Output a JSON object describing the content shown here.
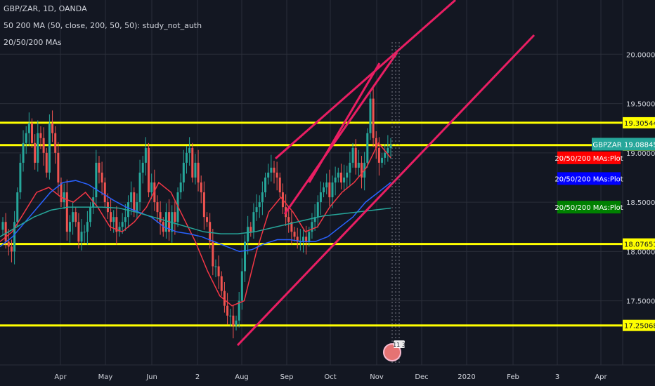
{
  "header": {
    "symbol_line": "GBP/ZAR, 1D, OANDA",
    "study_line": "50 200 MA (50, close, 200, 50, 50): study_not_auth",
    "ma_line": "20/50/200 MAs"
  },
  "chart_data": {
    "type": "candlestick",
    "symbol": "GBP/ZAR",
    "interval": "1D",
    "source": "OANDA",
    "ylim": [
      16.85,
      20.55
    ],
    "y_ticks": [
      17.5,
      18.0,
      18.5,
      19.0,
      19.5,
      20.0
    ],
    "y_tick_labels": [
      "17.50000",
      "18.00000",
      "18.50000",
      "19.00000",
      "19.50000",
      "20.00000"
    ],
    "x_tick_labels": [
      "Apr",
      "May",
      "Jun",
      "2",
      "Aug",
      "Sep",
      "Oct",
      "Nov",
      "Dec",
      "2020",
      "Feb",
      "3",
      "Apr"
    ],
    "horizontal_levels": [
      {
        "value": 19.30544,
        "label": "19.30544"
      },
      {
        "value": 19.07931,
        "label": "19.07931"
      },
      {
        "value": 18.07651,
        "label": "18.07651"
      },
      {
        "value": 17.25068,
        "label": "17.25068"
      }
    ],
    "last_price": {
      "label": "GBPZAR",
      "value": "19.08845",
      "y": 19.08845
    },
    "series_badges": [
      {
        "text": "20/50/200 MAs:Plot",
        "color": "#ff0000",
        "y": 18.95
      },
      {
        "text": "20/50/200 MAs:Plot",
        "color": "#0000ff",
        "y": 18.74
      },
      {
        "text": "20/50/200 MAs:Plot",
        "color": "#008000",
        "y": 18.45
      }
    ],
    "candles_daily": {
      "closes": [
        18.3,
        18.1,
        18.05,
        18.0,
        18.3,
        18.6,
        18.9,
        19.1,
        19.2,
        19.3,
        19.1,
        18.9,
        19.2,
        19.15,
        19.0,
        18.8,
        19.3,
        19.2,
        19.0,
        18.7,
        18.5,
        18.6,
        18.2,
        18.3,
        18.4,
        18.3,
        18.1,
        18.2,
        18.2,
        18.3,
        18.45,
        18.55,
        18.9,
        18.8,
        18.7,
        18.5,
        18.4,
        18.3,
        18.35,
        18.2,
        18.25,
        18.3,
        18.35,
        18.5,
        18.6,
        18.4,
        18.5,
        18.8,
        18.9,
        19.05,
        18.6,
        18.7,
        18.5,
        18.4,
        18.3,
        18.2,
        18.4,
        18.2,
        18.4,
        18.3,
        18.6,
        18.7,
        18.9,
        19.0,
        19.05,
        18.75,
        18.9,
        18.7,
        18.6,
        18.35,
        18.3,
        18.1,
        17.85,
        17.85,
        17.75,
        17.6,
        17.45,
        17.35,
        17.35,
        17.25,
        17.3,
        17.5,
        17.8,
        18.1,
        18.25,
        18.2,
        18.4,
        18.45,
        18.5,
        18.6,
        18.75,
        18.8,
        18.85,
        18.8,
        18.75,
        18.6,
        18.45,
        18.35,
        18.3,
        18.2,
        18.15,
        18.1,
        18.1,
        18.15,
        18.1,
        18.2,
        18.3,
        18.35,
        18.5,
        18.6,
        18.65,
        18.7,
        18.55,
        18.7,
        18.75,
        18.8,
        18.7,
        18.75,
        18.8,
        18.9,
        19.05,
        18.85,
        18.9,
        18.75,
        18.9,
        19.2,
        19.55,
        19.15,
        19.05,
        18.9,
        18.95,
        19.0,
        19.05,
        19.08
      ]
    },
    "moving_averages": [
      {
        "name": "MA 20",
        "color": "#f23645",
        "values": [
          18.1,
          18.2,
          18.4,
          18.6,
          18.65,
          18.55,
          18.5,
          18.6,
          18.45,
          18.25,
          18.2,
          18.3,
          18.45,
          18.7,
          18.6,
          18.35,
          18.1,
          17.8,
          17.55,
          17.45,
          17.5,
          18.0,
          18.4,
          18.55,
          18.4,
          18.2,
          18.25,
          18.45,
          18.6,
          18.7,
          18.85,
          19.1,
          18.95
        ]
      },
      {
        "name": "MA 50",
        "color": "#2962ff",
        "values": [
          18.05,
          18.15,
          18.3,
          18.45,
          18.6,
          18.7,
          18.72,
          18.68,
          18.6,
          18.52,
          18.45,
          18.4,
          18.35,
          18.25,
          18.2,
          18.18,
          18.15,
          18.1,
          18.05,
          18.0,
          18.02,
          18.08,
          18.12,
          18.12,
          18.1,
          18.1,
          18.15,
          18.25,
          18.35,
          18.5,
          18.6,
          18.7
        ]
      },
      {
        "name": "MA 200",
        "color": "#26a69a",
        "values": [
          18.15,
          18.25,
          18.35,
          18.42,
          18.45,
          18.45,
          18.45,
          18.44,
          18.4,
          18.35,
          18.3,
          18.25,
          18.2,
          18.18,
          18.18,
          18.2,
          18.24,
          18.28,
          18.32,
          18.36,
          18.38,
          18.4,
          18.42,
          18.44
        ]
      }
    ],
    "trendlines": [
      {
        "name": "channel-lower",
        "from": [
          "Aug",
          17.2
        ],
        "to": [
          "Feb",
          20.0
        ]
      },
      {
        "name": "channel-upper",
        "from": [
          "Sep",
          18.9
        ],
        "to": [
          "Jan",
          20.6
        ]
      },
      {
        "name": "inner-line-1",
        "from": [
          "Aug-end",
          18.1
        ],
        "to": [
          "Oct-end",
          19.8
        ]
      },
      {
        "name": "inner-line-2",
        "from": [
          "Sep-start",
          18.8
        ],
        "to": [
          "Nov",
          19.7
        ]
      }
    ],
    "colors": {
      "up": "#26a69a",
      "down": "#ef5350",
      "level": "#ffff00",
      "trend": "#e91e63",
      "grid": "#2a2e39",
      "text": "#d1d4dc"
    },
    "event_badge": "11 3"
  }
}
